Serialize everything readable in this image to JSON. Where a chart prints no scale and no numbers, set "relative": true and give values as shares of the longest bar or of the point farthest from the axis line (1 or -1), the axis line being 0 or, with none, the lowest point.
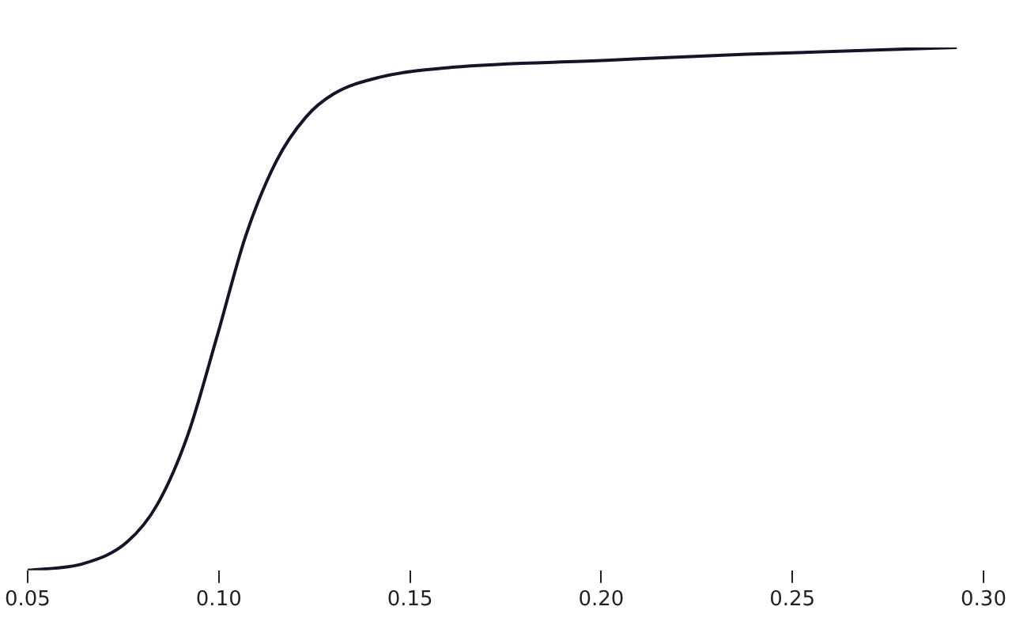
{
  "chart_data": {
    "type": "line",
    "relative": true,
    "color": "#14142b",
    "marker": "none",
    "x": [
      0.05,
      0.0647,
      0.076,
      0.084,
      0.0919,
      0.0996,
      0.107,
      0.115,
      0.1228,
      0.13,
      0.142,
      0.161,
      0.2,
      0.238,
      0.293
    ],
    "values": [
      0,
      0.013,
      0.054,
      0.127,
      0.259,
      0.449,
      0.639,
      0.782,
      0.867,
      0.911,
      0.943,
      0.962,
      0.975,
      0.987,
      1
    ],
    "xlim": [
      0.05,
      0.3
    ],
    "xticks": [
      0.05,
      {
        "value": 0.1,
        "label": "0.10"
      },
      0.15,
      {
        "value": 0.2,
        "label": "0.20"
      },
      0.25,
      {
        "value": 0.3,
        "label": "0.30"
      }
    ]
  }
}
